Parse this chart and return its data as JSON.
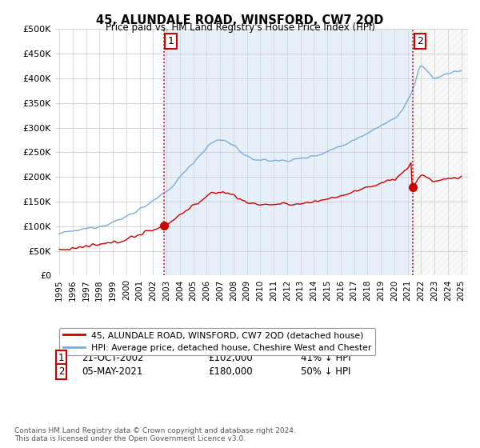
{
  "title": "45, ALUNDALE ROAD, WINSFORD, CW7 2QD",
  "subtitle": "Price paid vs. HM Land Registry's House Price Index (HPI)",
  "legend_line1": "45, ALUNDALE ROAD, WINSFORD, CW7 2QD (detached house)",
  "legend_line2": "HPI: Average price, detached house, Cheshire West and Chester",
  "footnote": "Contains HM Land Registry data © Crown copyright and database right 2024.\nThis data is licensed under the Open Government Licence v3.0.",
  "sale1_date": "21-OCT-2002",
  "sale1_price": 102000,
  "sale1_label": "41% ↓ HPI",
  "sale2_date": "05-MAY-2021",
  "sale2_price": 180000,
  "sale2_label": "50% ↓ HPI",
  "ylim": [
    0,
    500000
  ],
  "xlim_start": 1994.7,
  "xlim_end": 2025.5,
  "property_color": "#cc0000",
  "hpi_color": "#7aacda",
  "background_color": "#ffffff",
  "grid_color": "#cccccc",
  "vline_color": "#cc0000",
  "shade_color": "#ddeeff",
  "sale1_x": 2002.79,
  "sale2_x": 2021.37
}
